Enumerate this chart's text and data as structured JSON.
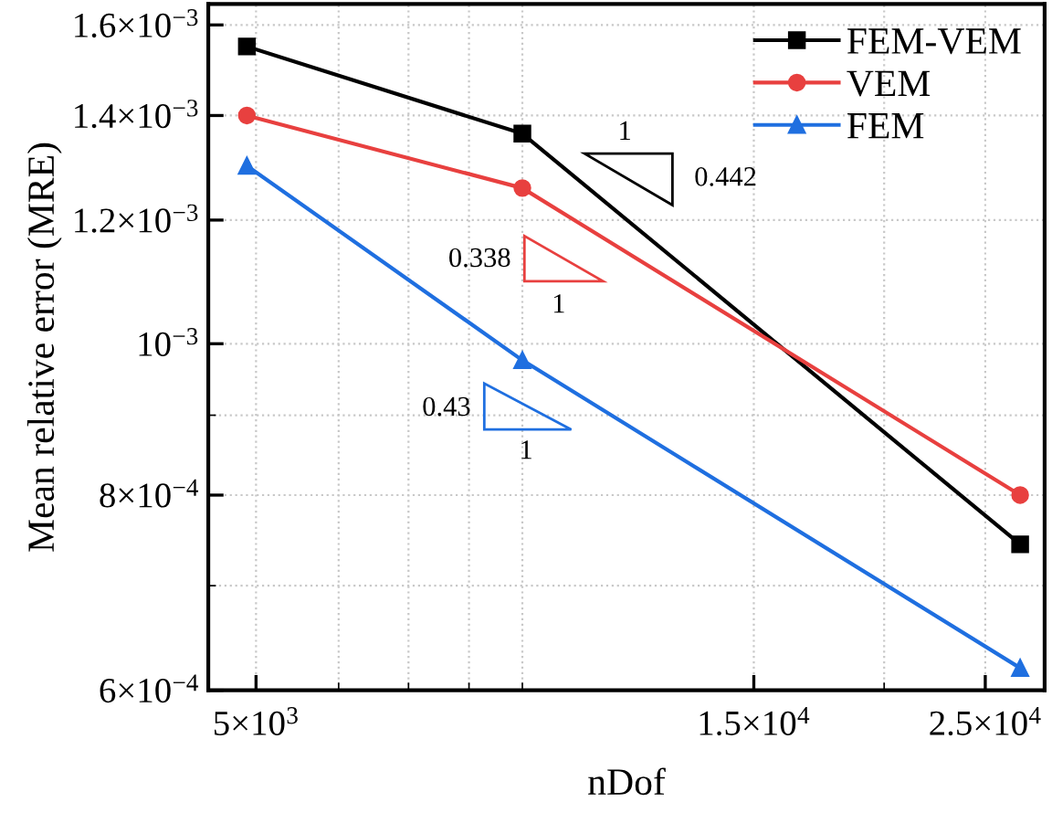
{
  "chart_data": {
    "type": "line",
    "xlabel": "nDof",
    "ylabel": "Mean relative error (MRE)",
    "log": "xy",
    "grid": true,
    "legend": "top right",
    "line_style": "solid",
    "x": [
      4900,
      9000,
      27000
    ],
    "xlim": [
      4500,
      28500
    ],
    "ylim": [
      0.0006,
      0.00165
    ],
    "xticks": [
      {
        "value": 5000,
        "label": "5×10$^{3}$"
      },
      {
        "value": 15000,
        "label": "1.5×10$^{4}$"
      },
      {
        "value": 25000,
        "label": "2.5×10$^{4}$"
      }
    ],
    "yticks": [
      {
        "value": 0.0006,
        "label": "6×10$^{−4}$"
      },
      {
        "value": 0.0008,
        "label": "8×10$^{−4}$"
      },
      {
        "value": 0.001,
        "label": "10$^{−3}$"
      },
      {
        "value": 0.0012,
        "label": "1.2×10$^{−3}$"
      },
      {
        "value": 0.0014,
        "label": "1.4×10$^{−3}$"
      },
      {
        "value": 0.0016,
        "label": "1.6×10$^{−3}$"
      }
    ],
    "series": [
      {
        "name": "FEM-VEM",
        "color": "#000000",
        "marker": "square",
        "values": [
          0.00155,
          0.001363,
          0.000744
        ]
      },
      {
        "name": "VEM",
        "color": "#e8403f",
        "marker": "circle",
        "values": [
          0.0014,
          0.001258,
          0.0008
        ]
      },
      {
        "name": "FEM",
        "color": "#1f6fe0",
        "marker": "triangle",
        "values": [
          0.0013,
          0.000976,
          0.00062
        ]
      }
    ],
    "annotations": [
      "1",
      "0.442",
      "0.338",
      "1",
      "0.43",
      "1"
    ]
  }
}
